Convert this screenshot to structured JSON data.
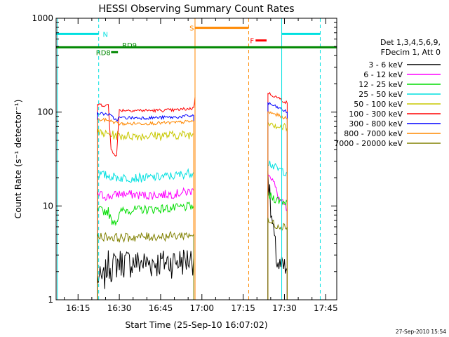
{
  "chart_data": {
    "type": "line",
    "title": "HESSI Observing Summary Count Rates",
    "xlabel": "Start Time (25-Sep-10 16:07:02)",
    "ylabel": "Count Rate (s⁻¹ detector⁻¹)",
    "y_scale": "log",
    "ylim": [
      1,
      1000
    ],
    "xlim": [
      "16:07:02",
      "17:49:00"
    ],
    "x_ticks": [
      "16:15",
      "16:30",
      "16:45",
      "17:00",
      "17:15",
      "17:30",
      "17:45"
    ],
    "y_ticks": [
      "1",
      "10",
      "100",
      "1000"
    ],
    "footer_date": "27-Sep-2010 15:54",
    "legend": {
      "header": [
        "Det 1,3,4,5,6,9,",
        "FDecim 1, Att 0"
      ],
      "placement": "right"
    },
    "series": [
      {
        "name": "3 - 6 keV",
        "color": "#000000",
        "segments": [
          [
            [
              "16:22",
              1.8
            ],
            [
              "16:24",
              1.6
            ],
            [
              "16:26",
              2.5
            ],
            [
              "16:27",
              2.3
            ],
            [
              "16:30",
              2.6
            ],
            [
              "16:40",
              2.5
            ],
            [
              "16:50",
              2.6
            ],
            [
              "16:57",
              2.8
            ]
          ],
          [
            [
              "17:24",
              25
            ],
            [
              "17:25",
              9
            ],
            [
              "17:26",
              5
            ],
            [
              "17:27",
              3
            ],
            [
              "17:28",
              2.3
            ],
            [
              "17:31",
              2.0
            ]
          ]
        ]
      },
      {
        "name": "6 - 12 keV",
        "color": "#ff00ff",
        "segments": [
          [
            [
              "16:22",
              13.5
            ],
            [
              "16:26",
              12.5
            ],
            [
              "16:30",
              13.5
            ],
            [
              "16:40",
              13
            ],
            [
              "16:50",
              13.5
            ],
            [
              "16:57",
              14.5
            ]
          ],
          [
            [
              "17:24",
              24
            ],
            [
              "17:26",
              18
            ],
            [
              "17:28",
              12
            ],
            [
              "17:31",
              9
            ]
          ]
        ]
      },
      {
        "name": "12 - 25 keV",
        "color": "#00dd00",
        "segments": [
          [
            [
              "16:22",
              9
            ],
            [
              "16:26",
              8.8
            ],
            [
              "16:27",
              7
            ],
            [
              "16:29",
              7
            ],
            [
              "16:31",
              9
            ],
            [
              "16:40",
              9.2
            ],
            [
              "16:50",
              9.5
            ],
            [
              "16:57",
              10
            ]
          ],
          [
            [
              "17:24",
              13
            ],
            [
              "17:28",
              11.5
            ],
            [
              "17:31",
              11
            ]
          ]
        ]
      },
      {
        "name": "25 - 50 keV",
        "color": "#00e0e0",
        "segments": [
          [
            [
              "16:22",
              22
            ],
            [
              "16:26",
              21
            ],
            [
              "16:30",
              20
            ],
            [
              "16:40",
              20
            ],
            [
              "16:50",
              21
            ],
            [
              "16:57",
              23
            ]
          ],
          [
            [
              "17:24",
              30
            ],
            [
              "17:27",
              25
            ],
            [
              "17:31",
              23
            ]
          ]
        ]
      },
      {
        "name": "50 - 100 keV",
        "color": "#c8c800",
        "segments": [
          [
            [
              "16:22",
              60
            ],
            [
              "16:26",
              58
            ],
            [
              "16:30",
              56
            ],
            [
              "16:40",
              56
            ],
            [
              "16:50",
              57
            ],
            [
              "16:57",
              58
            ]
          ],
          [
            [
              "17:24",
              82
            ],
            [
              "17:28",
              70
            ],
            [
              "17:31",
              68
            ]
          ]
        ]
      },
      {
        "name": "100 - 300 keV",
        "color": "#ff0000",
        "segments": [
          [
            [
              "16:22",
              120
            ],
            [
              "16:26",
              118
            ],
            [
              "16:27",
              40
            ],
            [
              "16:29",
              34
            ],
            [
              "16:30",
              105
            ],
            [
              "16:40",
              104
            ],
            [
              "16:50",
              105
            ],
            [
              "16:57",
              110
            ],
            [
              "16:57:30",
              145
            ]
          ],
          [
            [
              "17:24",
              160
            ],
            [
              "17:28",
              140
            ],
            [
              "17:31",
              125
            ]
          ]
        ]
      },
      {
        "name": "300 - 800 keV",
        "color": "#0000ff",
        "segments": [
          [
            [
              "16:22",
              97
            ],
            [
              "16:26",
              95
            ],
            [
              "16:29",
              82
            ],
            [
              "16:30",
              87
            ],
            [
              "16:40",
              87
            ],
            [
              "16:50",
              88
            ],
            [
              "16:57",
              92
            ]
          ],
          [
            [
              "17:24",
              125
            ],
            [
              "17:28",
              110
            ],
            [
              "17:31",
              100
            ]
          ]
        ]
      },
      {
        "name": "800 - 7000 keV",
        "color": "#ff8800",
        "segments": [
          [
            [
              "16:22",
              83
            ],
            [
              "16:26",
              82
            ],
            [
              "16:30",
              75
            ],
            [
              "16:40",
              76
            ],
            [
              "16:50",
              77
            ],
            [
              "16:57",
              80
            ]
          ],
          [
            [
              "17:24",
              100
            ],
            [
              "17:28",
              92
            ],
            [
              "17:31",
              85
            ]
          ]
        ]
      },
      {
        "name": "7000 - 20000 keV",
        "color": "#808000",
        "segments": [
          [
            [
              "16:22",
              4.8
            ],
            [
              "16:26",
              4.7
            ],
            [
              "16:30",
              4.6
            ],
            [
              "16:40",
              4.7
            ],
            [
              "16:50",
              4.8
            ],
            [
              "16:57",
              5
            ]
          ],
          [
            [
              "17:24",
              6.8
            ],
            [
              "17:28",
              6.2
            ],
            [
              "17:31",
              6
            ]
          ]
        ]
      }
    ],
    "annotations": [
      {
        "label": "N",
        "color": "#00e0e0",
        "kind": "night",
        "bars": [
          [
            "16:07:02",
            "16:22:30"
          ],
          [
            "17:29",
            "17:43"
          ]
        ],
        "level": 680,
        "lines": [
          {
            "time": "16:07:30",
            "style": "solid"
          },
          {
            "time": "16:22:30",
            "style": "dashed"
          },
          {
            "time": "17:29",
            "style": "solid"
          },
          {
            "time": "17:43",
            "style": "dashed"
          }
        ]
      },
      {
        "label": "S",
        "color": "#ff8800",
        "kind": "saa",
        "bars": [
          [
            "16:57:30",
            "17:17"
          ]
        ],
        "level": 790,
        "lines": [
          {
            "time": "16:57:30",
            "style": "solid"
          },
          {
            "time": "17:17",
            "style": "dashed"
          }
        ]
      },
      {
        "label": "F",
        "color": "#ff0000",
        "kind": "flare",
        "bars": [
          [
            "17:19:30",
            "17:23:30"
          ]
        ],
        "level": 580,
        "lines": []
      },
      {
        "label": "RD9",
        "color": "#008800",
        "kind": "decimation",
        "bars": [
          [
            "16:07:02",
            "17:49:00"
          ]
        ],
        "level": 490,
        "lines": []
      },
      {
        "label": "RD8",
        "color": "#008800",
        "kind": "decimation",
        "bars": [
          [
            "16:27:00",
            "16:29:30"
          ]
        ],
        "level": 435,
        "lines": []
      }
    ]
  }
}
